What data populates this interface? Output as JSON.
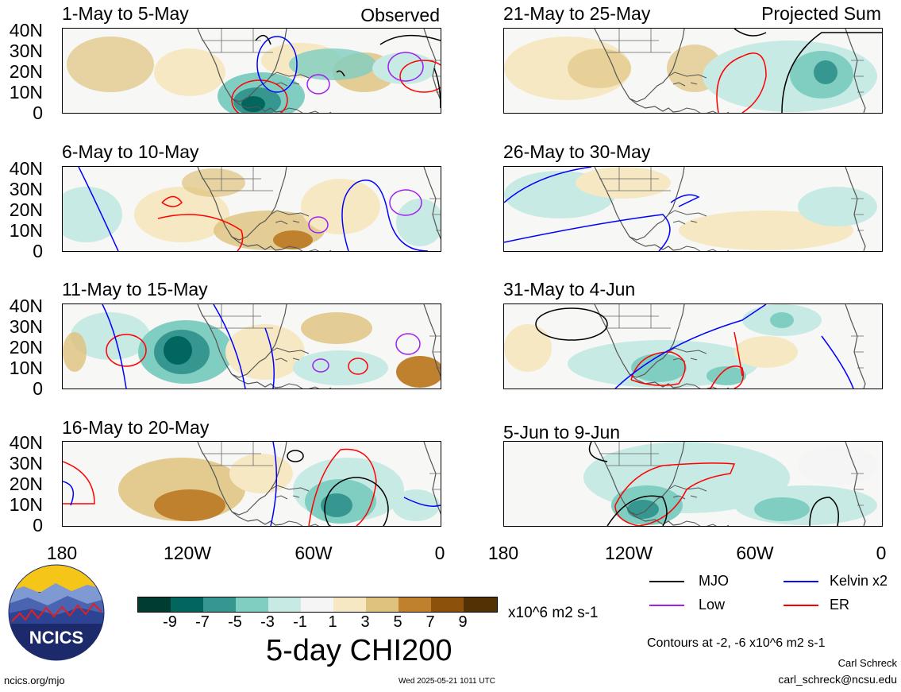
{
  "panels": [
    {
      "title": "1-May to 5-May",
      "corner": "Observed"
    },
    {
      "title": "6-May to 10-May",
      "corner": ""
    },
    {
      "title": "11-May to 15-May",
      "corner": ""
    },
    {
      "title": "16-May to 20-May",
      "corner": ""
    },
    {
      "title": "21-May to 25-May",
      "corner": "Projected Sum"
    },
    {
      "title": "26-May to 30-May",
      "corner": ""
    },
    {
      "title": "31-May to 4-Jun",
      "corner": ""
    },
    {
      "title": "5-Jun to 9-Jun",
      "corner": ""
    }
  ],
  "y_ticks": [
    "40N",
    "30N",
    "20N",
    "10N",
    "0"
  ],
  "x_ticks": [
    "180",
    "120W",
    "60W",
    "0"
  ],
  "colorbar": {
    "colors": [
      "#003c30",
      "#01665e",
      "#35978f",
      "#80cdc1",
      "#c7eae5",
      "#f5f5f5",
      "#f6e8c3",
      "#dfc27d",
      "#bf812d",
      "#8c510a",
      "#543005"
    ],
    "ticks": [
      "-9",
      "-7",
      "-5",
      "-3",
      "-1",
      "1",
      "3",
      "5",
      "7",
      "9"
    ],
    "units": "x10^6 m2 s-1"
  },
  "main_title": "5-day CHI200",
  "legend": [
    {
      "label": "MJO",
      "color": "#000000"
    },
    {
      "label": "Kelvin x2",
      "color": "#0000ff"
    },
    {
      "label": "Low",
      "color": "#a020f0"
    },
    {
      "label": "ER",
      "color": "#ff0000"
    }
  ],
  "contour_note": "Contours at -2, -6 x10^6 m2 s-1",
  "author": "Carl Schreck",
  "email": "carl_schreck@ncsu.edu",
  "website": "ncics.org/mjo",
  "timestamp": "Wed 2025-05-21 1011 UTC",
  "logo_text": "NCICS"
}
